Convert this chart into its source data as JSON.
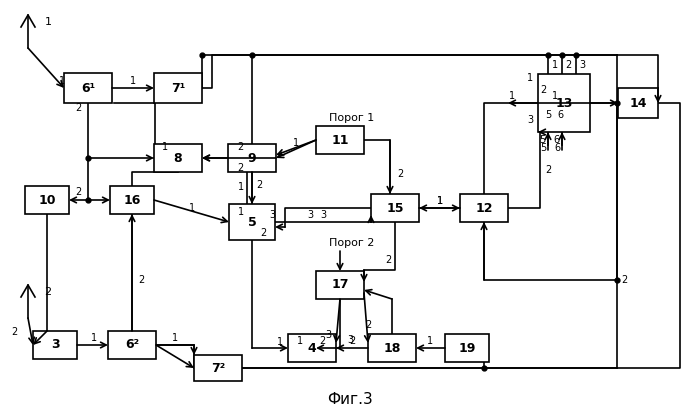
{
  "title": "Фиг.3",
  "bg": "#ffffff",
  "blocks": [
    [
      88,
      88,
      48,
      30,
      "6¹"
    ],
    [
      178,
      88,
      48,
      30,
      "7¹"
    ],
    [
      178,
      158,
      48,
      28,
      "8"
    ],
    [
      252,
      158,
      48,
      28,
      "9"
    ],
    [
      47,
      200,
      44,
      28,
      "10"
    ],
    [
      132,
      200,
      44,
      28,
      "16"
    ],
    [
      252,
      222,
      46,
      36,
      "5"
    ],
    [
      340,
      140,
      48,
      28,
      "11"
    ],
    [
      395,
      208,
      48,
      28,
      "15"
    ],
    [
      484,
      208,
      48,
      28,
      "12"
    ],
    [
      564,
      103,
      52,
      58,
      "13"
    ],
    [
      638,
      103,
      40,
      30,
      "14"
    ],
    [
      340,
      285,
      48,
      28,
      "17"
    ],
    [
      312,
      348,
      48,
      28,
      "4"
    ],
    [
      392,
      348,
      48,
      28,
      "18"
    ],
    [
      467,
      348,
      44,
      28,
      "19"
    ],
    [
      55,
      345,
      44,
      28,
      "3"
    ],
    [
      132,
      345,
      48,
      28,
      "6²"
    ],
    [
      218,
      368,
      48,
      26,
      "7²"
    ]
  ],
  "ant1": [
    28,
    15,
    28,
    48,
    48,
    22
  ],
  "ant2": [
    28,
    285,
    28,
    318,
    48,
    292
  ],
  "porog1": [
    352,
    120,
    "Порог 1"
  ],
  "porog2": [
    352,
    245,
    "Порог 2"
  ]
}
